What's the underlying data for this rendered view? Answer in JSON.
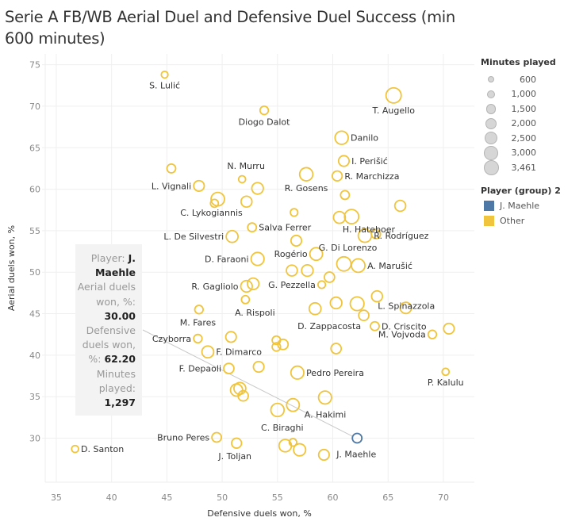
{
  "chart_data": {
    "type": "scatter",
    "title": "Serie A FB/WB Aerial Duel and Defensive Duel Success (min 600 minutes)",
    "xlabel": "Defensive duels won, %",
    "ylabel": "Aerial duels won, %",
    "xlim": [
      34,
      72.8
    ],
    "ylim": [
      24.7,
      76.3
    ],
    "xticks": [
      "35",
      "40",
      "45",
      "50",
      "55",
      "60",
      "65",
      "70"
    ],
    "yticks": [
      "30",
      "35",
      "40",
      "45",
      "50",
      "55",
      "60",
      "65",
      "70",
      "75"
    ],
    "grid": true,
    "size_field": "Minutes played",
    "color_field": "Player (group) 2",
    "colors": {
      "J. Maehle": "#4e79a7",
      "Other": "#f0c43c"
    },
    "points": [
      {
        "name": "S. Lulić",
        "x": 44.8,
        "y": 73.8,
        "minutes": 650,
        "group": "Other",
        "label": true,
        "label_pos": "below"
      },
      {
        "name": "Diogo Dalot",
        "x": 53.8,
        "y": 69.5,
        "minutes": 1000,
        "group": "Other",
        "label": true,
        "label_pos": "below"
      },
      {
        "name": "T. Augello",
        "x": 65.5,
        "y": 71.3,
        "minutes": 3300,
        "group": "Other",
        "label": true,
        "label_pos": "below"
      },
      {
        "name": "Danilo",
        "x": 60.8,
        "y": 66.2,
        "minutes": 2500,
        "group": "Other",
        "label": true,
        "label_pos": "right"
      },
      {
        "name": "I. Perišić",
        "x": 61.0,
        "y": 63.4,
        "minutes": 1600,
        "group": "Other",
        "label": true,
        "label_pos": "right"
      },
      {
        "name": "R. Marchizza",
        "x": 60.4,
        "y": 61.6,
        "minutes": 1400,
        "group": "Other",
        "label": true,
        "label_pos": "right"
      },
      {
        "name": "",
        "x": 45.4,
        "y": 62.5,
        "minutes": 1100,
        "group": "Other",
        "label": false
      },
      {
        "name": "N. Murru",
        "x": 51.8,
        "y": 61.2,
        "minutes": 700,
        "group": "Other",
        "label": true,
        "label_pos": "above"
      },
      {
        "name": "",
        "x": 53.2,
        "y": 60.1,
        "minutes": 1900,
        "group": "Other",
        "label": false
      },
      {
        "name": "R. Gosens",
        "x": 57.6,
        "y": 61.8,
        "minutes": 2500,
        "group": "Other",
        "label": true,
        "label_pos": "below"
      },
      {
        "name": "L. Vignali",
        "x": 47.9,
        "y": 60.4,
        "minutes": 1600,
        "group": "Other",
        "label": true,
        "label_pos": "left"
      },
      {
        "name": "C. Lykogiannis",
        "x": 49.6,
        "y": 58.8,
        "minutes": 2600,
        "group": "Other",
        "label": true,
        "label_pos": "below"
      },
      {
        "name": "",
        "x": 49.3,
        "y": 58.3,
        "minutes": 900,
        "group": "Other",
        "label": false
      },
      {
        "name": "",
        "x": 52.2,
        "y": 58.5,
        "minutes": 1700,
        "group": "Other",
        "label": false
      },
      {
        "name": "",
        "x": 61.1,
        "y": 59.3,
        "minutes": 1100,
        "group": "Other",
        "label": false
      },
      {
        "name": "",
        "x": 56.5,
        "y": 57.2,
        "minutes": 800,
        "group": "Other",
        "label": false
      },
      {
        "name": "",
        "x": 66.1,
        "y": 58.0,
        "minutes": 1700,
        "group": "Other",
        "label": false
      },
      {
        "name": "H. Hateboer",
        "x": 60.6,
        "y": 56.6,
        "minutes": 2000,
        "group": "Other",
        "label": true,
        "label_pos": "below-right"
      },
      {
        "name": "",
        "x": 61.7,
        "y": 56.7,
        "minutes": 2900,
        "group": "Other",
        "label": false
      },
      {
        "name": "Salva Ferrer",
        "x": 52.7,
        "y": 55.4,
        "minutes": 1100,
        "group": "Other",
        "label": true,
        "label_pos": "right"
      },
      {
        "name": "L. De Silvestri",
        "x": 50.9,
        "y": 54.3,
        "minutes": 2000,
        "group": "Other",
        "label": true,
        "label_pos": "left"
      },
      {
        "name": "R. Rodríguez",
        "x": 62.9,
        "y": 54.4,
        "minutes": 2500,
        "group": "Other",
        "label": true,
        "label_pos": "right"
      },
      {
        "name": "",
        "x": 63.9,
        "y": 54.6,
        "minutes": 1200,
        "group": "Other",
        "label": false
      },
      {
        "name": "",
        "x": 56.7,
        "y": 53.8,
        "minutes": 1600,
        "group": "Other",
        "label": false
      },
      {
        "name": "G. Di Lorenzo",
        "x": 61.0,
        "y": 51.0,
        "minutes": 2900,
        "group": "Other",
        "label": true,
        "label_pos": "above"
      },
      {
        "name": "A. Marušić",
        "x": 62.3,
        "y": 50.8,
        "minutes": 2600,
        "group": "Other",
        "label": true,
        "label_pos": "right"
      },
      {
        "name": "D. Faraoni",
        "x": 53.2,
        "y": 51.6,
        "minutes": 2400,
        "group": "Other",
        "label": true,
        "label_pos": "left"
      },
      {
        "name": "Rogério",
        "x": 58.5,
        "y": 52.2,
        "minutes": 2300,
        "group": "Other",
        "label": true,
        "label_pos": "left"
      },
      {
        "name": "",
        "x": 56.3,
        "y": 50.2,
        "minutes": 1700,
        "group": "Other",
        "label": false
      },
      {
        "name": "",
        "x": 57.7,
        "y": 50.2,
        "minutes": 1900,
        "group": "Other",
        "label": false
      },
      {
        "name": "",
        "x": 59.7,
        "y": 49.4,
        "minutes": 1500,
        "group": "Other",
        "label": false
      },
      {
        "name": "R. Gagliolo",
        "x": 52.2,
        "y": 48.3,
        "minutes": 1900,
        "group": "Other",
        "label": true,
        "label_pos": "left"
      },
      {
        "name": "",
        "x": 52.8,
        "y": 48.6,
        "minutes": 1900,
        "group": "Other",
        "label": false
      },
      {
        "name": "G. Pezzella",
        "x": 59.0,
        "y": 48.5,
        "minutes": 800,
        "group": "Other",
        "label": true,
        "label_pos": "left"
      },
      {
        "name": "L. Spinazzola",
        "x": 64.0,
        "y": 47.1,
        "minutes": 1700,
        "group": "Other",
        "label": true,
        "label_pos": "above-right"
      },
      {
        "name": "A. Rispoli",
        "x": 52.1,
        "y": 46.7,
        "minutes": 900,
        "group": "Other",
        "label": true,
        "label_pos": "below"
      },
      {
        "name": "",
        "x": 60.3,
        "y": 46.3,
        "minutes": 1900,
        "group": "Other",
        "label": false
      },
      {
        "name": "",
        "x": 62.2,
        "y": 46.2,
        "minutes": 2700,
        "group": "Other",
        "label": false
      },
      {
        "name": "",
        "x": 58.4,
        "y": 45.6,
        "minutes": 2000,
        "group": "Other",
        "label": false
      },
      {
        "name": "",
        "x": 66.6,
        "y": 45.7,
        "minutes": 1800,
        "group": "Other",
        "label": false
      },
      {
        "name": "M. Fares",
        "x": 47.9,
        "y": 45.5,
        "minutes": 1000,
        "group": "Other",
        "label": true,
        "label_pos": "below-left"
      },
      {
        "name": "",
        "x": 62.8,
        "y": 44.8,
        "minutes": 1500,
        "group": "Other",
        "label": false
      },
      {
        "name": "D. Zappacosta",
        "x": 60.9,
        "y": 45.8,
        "minutes": 0,
        "group": "Other",
        "label": true,
        "label_pos": "label-only"
      },
      {
        "name": "D. Criscito",
        "x": 63.8,
        "y": 43.5,
        "minutes": 1100,
        "group": "Other",
        "label": true,
        "label_pos": "right"
      },
      {
        "name": "",
        "x": 70.5,
        "y": 43.2,
        "minutes": 1600,
        "group": "Other",
        "label": false
      },
      {
        "name": "M. Vojvoda",
        "x": 69.0,
        "y": 42.5,
        "minutes": 1000,
        "group": "Other",
        "label": true,
        "label_pos": "left"
      },
      {
        "name": "Czyborra",
        "x": 47.8,
        "y": 42.0,
        "minutes": 1000,
        "group": "Other",
        "label": true,
        "label_pos": "left"
      },
      {
        "name": "",
        "x": 50.8,
        "y": 42.2,
        "minutes": 1600,
        "group": "Other",
        "label": false
      },
      {
        "name": "",
        "x": 54.9,
        "y": 41.8,
        "minutes": 1000,
        "group": "Other",
        "label": false
      },
      {
        "name": "",
        "x": 54.9,
        "y": 41.0,
        "minutes": 1000,
        "group": "Other",
        "label": false
      },
      {
        "name": "",
        "x": 55.5,
        "y": 41.3,
        "minutes": 1500,
        "group": "Other",
        "label": false
      },
      {
        "name": "",
        "x": 60.3,
        "y": 40.8,
        "minutes": 1500,
        "group": "Other",
        "label": false
      },
      {
        "name": "F. Dimarco",
        "x": 48.7,
        "y": 40.4,
        "minutes": 2000,
        "group": "Other",
        "label": true,
        "label_pos": "right"
      },
      {
        "name": "F. Depaoli",
        "x": 50.6,
        "y": 38.4,
        "minutes": 1500,
        "group": "Other",
        "label": true,
        "label_pos": "left"
      },
      {
        "name": "",
        "x": 53.3,
        "y": 38.6,
        "minutes": 1600,
        "group": "Other",
        "label": false
      },
      {
        "name": "Pedro Pereira",
        "x": 56.8,
        "y": 37.9,
        "minutes": 2400,
        "group": "Other",
        "label": true,
        "label_pos": "right"
      },
      {
        "name": "P. Kalulu",
        "x": 70.2,
        "y": 38.0,
        "minutes": 700,
        "group": "Other",
        "label": true,
        "label_pos": "below"
      },
      {
        "name": "",
        "x": 51.3,
        "y": 35.8,
        "minutes": 2100,
        "group": "Other",
        "label": false
      },
      {
        "name": "",
        "x": 51.6,
        "y": 36.0,
        "minutes": 2000,
        "group": "Other",
        "label": false
      },
      {
        "name": "",
        "x": 51.9,
        "y": 35.1,
        "minutes": 1500,
        "group": "Other",
        "label": false
      },
      {
        "name": "A. Hakimi",
        "x": 59.3,
        "y": 34.9,
        "minutes": 2400,
        "group": "Other",
        "label": true,
        "label_pos": "below-right"
      },
      {
        "name": "C. Biraghi",
        "x": 55.0,
        "y": 33.4,
        "minutes": 2500,
        "group": "Other",
        "label": true,
        "label_pos": "below"
      },
      {
        "name": "",
        "x": 56.4,
        "y": 34.0,
        "minutes": 2300,
        "group": "Other",
        "label": false
      },
      {
        "name": "J. Maehle",
        "x": 62.2,
        "y": 30.0,
        "minutes": 1297,
        "group": "J. Maehle",
        "label": true,
        "label_pos": "below-right"
      },
      {
        "name": "Bruno Peres",
        "x": 49.5,
        "y": 30.1,
        "minutes": 1300,
        "group": "Other",
        "label": true,
        "label_pos": "left"
      },
      {
        "name": "J. Toljan",
        "x": 51.3,
        "y": 29.4,
        "minutes": 1400,
        "group": "Other",
        "label": true,
        "label_pos": "below"
      },
      {
        "name": "",
        "x": 55.7,
        "y": 29.1,
        "minutes": 2200,
        "group": "Other",
        "label": false
      },
      {
        "name": "",
        "x": 56.4,
        "y": 29.5,
        "minutes": 800,
        "group": "Other",
        "label": false
      },
      {
        "name": "",
        "x": 57.0,
        "y": 28.6,
        "minutes": 2100,
        "group": "Other",
        "label": false
      },
      {
        "name": "",
        "x": 59.2,
        "y": 28.0,
        "minutes": 1600,
        "group": "Other",
        "label": false
      },
      {
        "name": "D. Santon",
        "x": 36.7,
        "y": 28.7,
        "minutes": 700,
        "group": "Other",
        "label": true,
        "label_pos": "right"
      }
    ]
  },
  "legend": {
    "size_title": "Minutes played",
    "sizes": [
      {
        "label": "600",
        "value": 600
      },
      {
        "label": "1,000",
        "value": 1000
      },
      {
        "label": "1,500",
        "value": 1500
      },
      {
        "label": "2,000",
        "value": 2000
      },
      {
        "label": "2,500",
        "value": 2500
      },
      {
        "label": "3,000",
        "value": 3000
      },
      {
        "label": "3,461",
        "value": 3461
      }
    ],
    "color_title": "Player (group) 2",
    "colors": [
      {
        "label": "J. Maehle",
        "color": "#4e79a7"
      },
      {
        "label": "Other",
        "color": "#f0c43c"
      }
    ]
  },
  "tooltip": {
    "player_label": "Player:",
    "player_value": "J. Maehle",
    "aerial_label": "Aerial duels won, %:",
    "aerial_value": "30.00",
    "defensive_label": "Defensive duels won, %:",
    "defensive_value": "62.20",
    "minutes_label": "Minutes played:",
    "minutes_value": "1,297"
  }
}
